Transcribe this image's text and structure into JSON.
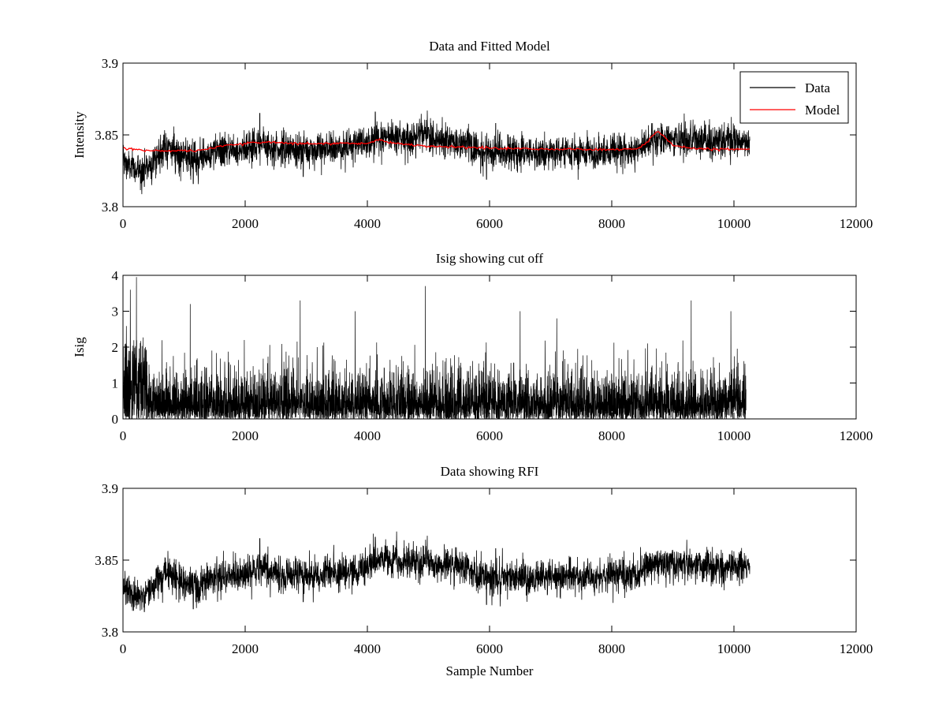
{
  "figure": {
    "background": "#ffffff"
  },
  "chart_data": [
    {
      "type": "line",
      "title": "Data and Fitted Model",
      "xlabel": "",
      "ylabel": "Intensity",
      "xlim": [
        0,
        12000
      ],
      "ylim": [
        3.8,
        3.9
      ],
      "xticks": [
        "0",
        "2000",
        "4000",
        "6000",
        "8000",
        "10000",
        "12000"
      ],
      "yticks": [
        "3.8",
        "3.85",
        "3.9"
      ],
      "legend": {
        "placement": "top-right",
        "entries": [
          "Data",
          "Model"
        ]
      },
      "grid": false,
      "series": [
        {
          "name": "Data",
          "color": "#000000",
          "n_samples": 10260,
          "noise_sd": 0.006,
          "trend": {
            "x": [
              0,
              150,
              300,
              450,
              700,
              900,
              1100,
              1250,
              1500,
              1800,
              2100,
              2300,
              2600,
              3000,
              3400,
              3800,
              4100,
              4300,
              4600,
              5000,
              5300,
              5600,
              5800,
              6000,
              6200,
              6600,
              7000,
              7400,
              7800,
              8000,
              8300,
              8500,
              8700,
              8900,
              9200,
              9600,
              10000,
              10260
            ],
            "y": [
              3.832,
              3.826,
              3.825,
              3.83,
              3.842,
              3.838,
              3.832,
              3.833,
              3.838,
              3.84,
              3.842,
              3.843,
              3.84,
              3.839,
              3.84,
              3.843,
              3.848,
              3.85,
              3.848,
              3.849,
              3.847,
              3.844,
              3.84,
              3.838,
              3.838,
              3.837,
              3.838,
              3.838,
              3.838,
              3.84,
              3.838,
              3.842,
              3.848,
              3.848,
              3.846,
              3.846,
              3.845,
              3.846
            ]
          },
          "spikes": [
            {
              "x": 2240,
              "y": 3.865
            },
            {
              "x": 4130,
              "y": 3.866
            },
            {
              "x": 4980,
              "y": 3.867
            },
            {
              "x": 6100,
              "y": 3.858
            },
            {
              "x": 2950,
              "y": 3.821
            },
            {
              "x": 5950,
              "y": 3.819
            },
            {
              "x": 1150,
              "y": 3.816
            },
            {
              "x": 350,
              "y": 3.814
            }
          ]
        },
        {
          "name": "Model",
          "color": "#ff0000",
          "x": [
            0,
            400,
            1200,
            1600,
            2000,
            2300,
            2800,
            3600,
            4000,
            4150,
            4200,
            4300,
            4500,
            5000,
            6000,
            7000,
            8000,
            8350,
            8450,
            8600,
            8750,
            8850,
            9000,
            9200,
            9600,
            10260
          ],
          "y": [
            3.841,
            3.839,
            3.839,
            3.842,
            3.844,
            3.845,
            3.844,
            3.844,
            3.844,
            3.846,
            3.847,
            3.845,
            3.844,
            3.842,
            3.841,
            3.84,
            3.84,
            3.84,
            3.841,
            3.846,
            3.853,
            3.849,
            3.843,
            3.841,
            3.84,
            3.84
          ]
        }
      ]
    },
    {
      "type": "line",
      "title": "Isig showing cut off",
      "xlabel": "",
      "ylabel": "Isig",
      "xlim": [
        0,
        12000
      ],
      "ylim": [
        0,
        4
      ],
      "xticks": [
        "0",
        "2000",
        "4000",
        "6000",
        "8000",
        "10000",
        "12000"
      ],
      "yticks": [
        "0",
        "1",
        "2",
        "3",
        "4"
      ],
      "grid": false,
      "series": [
        {
          "color": "#000000",
          "n_samples": 10200,
          "typical_max": 2.2,
          "spikes": [
            {
              "x": 220,
              "y": 3.95
            },
            {
              "x": 120,
              "y": 3.6
            },
            {
              "x": 1100,
              "y": 3.2
            },
            {
              "x": 2900,
              "y": 3.3
            },
            {
              "x": 4950,
              "y": 3.7
            },
            {
              "x": 9300,
              "y": 3.3
            },
            {
              "x": 9950,
              "y": 3.0
            },
            {
              "x": 3800,
              "y": 3.0
            },
            {
              "x": 6500,
              "y": 3.0
            },
            {
              "x": 7100,
              "y": 2.8
            }
          ]
        }
      ]
    },
    {
      "type": "line",
      "title": "Data showing RFI",
      "xlabel": "Sample Number",
      "ylabel": "",
      "xlim": [
        0,
        12000
      ],
      "ylim": [
        3.8,
        3.9
      ],
      "xticks": [
        "0",
        "2000",
        "4000",
        "6000",
        "8000",
        "10000",
        "12000"
      ],
      "yticks": [
        "3.8",
        "3.85",
        "3.9"
      ],
      "grid": false,
      "series": [
        {
          "color": "#000000",
          "n_samples": 10260,
          "noise_sd": 0.006,
          "trend": {
            "x": [
              0,
              150,
              300,
              450,
              700,
              900,
              1100,
              1250,
              1500,
              1800,
              2100,
              2300,
              2600,
              3000,
              3400,
              3800,
              4100,
              4300,
              4600,
              5000,
              5300,
              5600,
              5800,
              6000,
              6200,
              6600,
              7000,
              7400,
              7800,
              8000,
              8300,
              8500,
              8700,
              8900,
              9200,
              9600,
              10000,
              10260
            ],
            "y": [
              3.832,
              3.826,
              3.825,
              3.83,
              3.842,
              3.838,
              3.832,
              3.833,
              3.838,
              3.84,
              3.842,
              3.843,
              3.84,
              3.839,
              3.84,
              3.843,
              3.848,
              3.85,
              3.848,
              3.849,
              3.847,
              3.844,
              3.84,
              3.838,
              3.838,
              3.837,
              3.838,
              3.838,
              3.838,
              3.84,
              3.838,
              3.842,
              3.848,
              3.848,
              3.846,
              3.846,
              3.845,
              3.846
            ]
          },
          "spikes": [
            {
              "x": 2240,
              "y": 3.865
            },
            {
              "x": 4130,
              "y": 3.866
            },
            {
              "x": 4980,
              "y": 3.867
            },
            {
              "x": 6100,
              "y": 3.858
            },
            {
              "x": 2950,
              "y": 3.821
            },
            {
              "x": 5950,
              "y": 3.819
            },
            {
              "x": 1150,
              "y": 3.816
            },
            {
              "x": 350,
              "y": 3.814
            }
          ]
        }
      ]
    }
  ]
}
